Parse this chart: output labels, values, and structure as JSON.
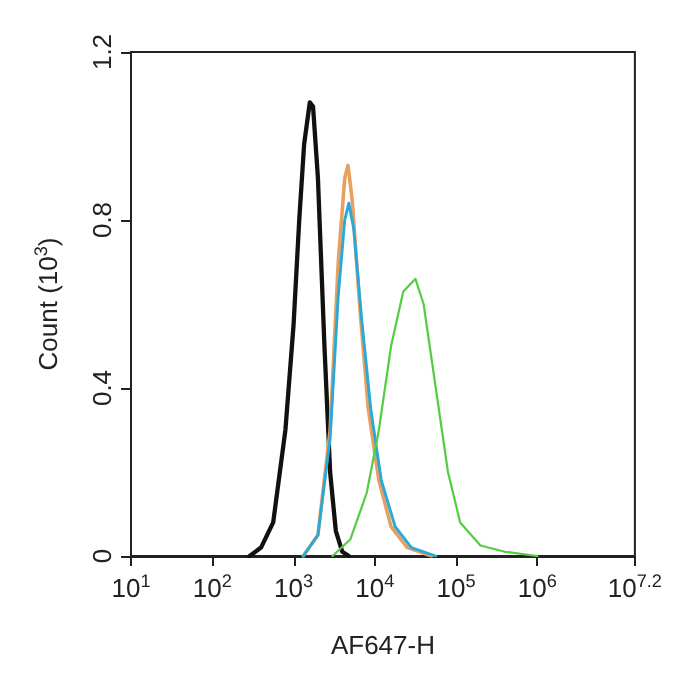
{
  "chart_data": {
    "type": "line",
    "xlabel": "AF647-H",
    "ylabel": "Count (10$^{3}$)",
    "log": "x",
    "xlim": [
      10,
      15848932
    ],
    "ylim": [
      0,
      1.2
    ],
    "xticks": [
      {
        "value": 10,
        "label": "10$^{1}$"
      },
      {
        "value": 100,
        "label": "10$^{2}$"
      },
      {
        "value": 1000,
        "label": "10$^{3}$"
      },
      {
        "value": 10000,
        "label": "10$^{4}$"
      },
      {
        "value": 100000,
        "label": "10$^{5}$"
      },
      {
        "value": 1000000,
        "label": "10$^{6}$"
      },
      {
        "value": 15848932,
        "label": "10$^{7.2}$"
      }
    ],
    "yticks": [
      0,
      0.4,
      0.8,
      1.2
    ],
    "grid": false,
    "marker": "none",
    "line_style": "solid",
    "series": [
      {
        "color": "#111111",
        "x": [
          288,
          398,
          562,
          794,
          1000,
          1175,
          1349,
          1585,
          1738,
          1995,
          2399,
          2818,
          3311,
          3981,
          4786
        ],
        "values": [
          0,
          0.02,
          0.08,
          0.3,
          0.55,
          0.8,
          0.98,
          1.08,
          1.07,
          0.9,
          0.5,
          0.2,
          0.06,
          0.01,
          0
        ]
      },
      {
        "color": "#e8a060",
        "x": [
          1318,
          1995,
          2818,
          3548,
          4266,
          4677,
          5248,
          6607,
          8318,
          11220,
          15850,
          25120,
          50120
        ],
        "values": [
          0,
          0.05,
          0.3,
          0.7,
          0.9,
          0.93,
          0.85,
          0.58,
          0.35,
          0.18,
          0.07,
          0.02,
          0
        ]
      },
      {
        "color": "#2aa8d8",
        "x": [
          1318,
          1995,
          2818,
          3548,
          4266,
          4786,
          5495,
          6918,
          8913,
          12020,
          17780,
          28180,
          56230
        ],
        "values": [
          0,
          0.05,
          0.28,
          0.62,
          0.8,
          0.84,
          0.78,
          0.56,
          0.35,
          0.18,
          0.07,
          0.02,
          0
        ]
      },
      {
        "color": "#55cc44",
        "x": [
          3020,
          5012,
          7943,
          11220,
          15850,
          22390,
          31620,
          39810,
          56230,
          79430,
          112200,
          199500,
          398100,
          1000000
        ],
        "values": [
          0,
          0.04,
          0.15,
          0.3,
          0.5,
          0.63,
          0.66,
          0.6,
          0.4,
          0.2,
          0.08,
          0.025,
          0.01,
          0
        ]
      }
    ]
  }
}
